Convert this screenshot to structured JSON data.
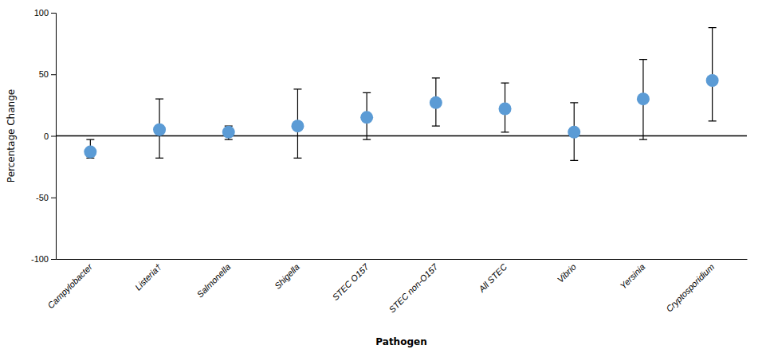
{
  "chart_data": {
    "type": "errorbar",
    "xlabel": "Pathogen",
    "ylabel": "Percentage Change",
    "categories": [
      "Campylobacter",
      "Listeria†",
      "Salmonella",
      "Shigella",
      "STEC O157",
      "STEC non-O157",
      "All STEC",
      "Vibrio",
      "Yersinia",
      "Cryptosporidium"
    ],
    "values": [
      -13,
      5,
      3,
      8,
      15,
      27,
      22,
      3,
      30,
      45
    ],
    "error_lower": [
      5,
      23,
      6,
      26,
      18,
      19,
      19,
      23,
      33,
      33
    ],
    "error_upper": [
      10,
      25,
      5,
      30,
      20,
      20,
      21,
      24,
      32,
      43
    ],
    "hline": 0,
    "color": "#5b9bd5",
    "ylim": [
      -100,
      100
    ],
    "yticks": [
      -100,
      -50,
      0,
      50,
      100
    ],
    "grid": false
  }
}
